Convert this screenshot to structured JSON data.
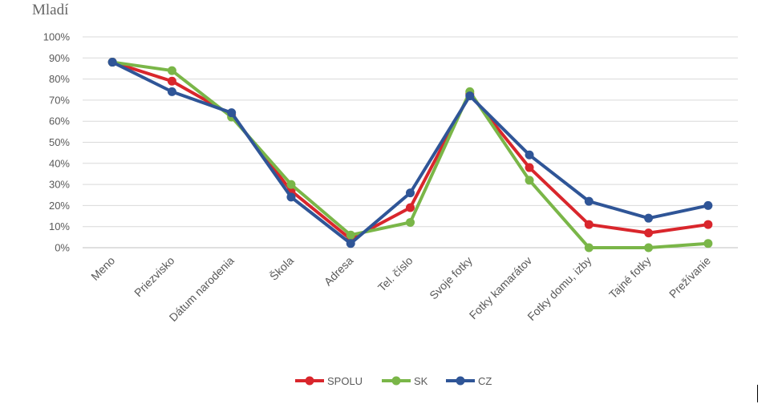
{
  "header": {
    "title": "Mladí"
  },
  "chart_data": {
    "type": "line",
    "title": "Mladí",
    "xlabel": "",
    "ylabel": "",
    "ylim": [
      0,
      100
    ],
    "y_ticks": [
      "0%",
      "10%",
      "20%",
      "30%",
      "40%",
      "50%",
      "60%",
      "70%",
      "80%",
      "90%",
      "100%"
    ],
    "grid": true,
    "legend_position": "bottom",
    "categories": [
      "Meno",
      "Priezvisko",
      "Dátum narodenia",
      "Škola",
      "Adresa",
      "Tel. číslo",
      "Svoje fotky",
      "Fotky kamarátov",
      "Fotky domu, izby",
      "Tajné fotky",
      "Prežívanie"
    ],
    "series": [
      {
        "name": "SPOLU",
        "color": "#d9262c",
        "values": [
          88,
          79,
          63,
          27,
          4,
          19,
          73,
          38,
          11,
          7,
          11
        ]
      },
      {
        "name": "SK",
        "color": "#7ab648",
        "values": [
          88,
          84,
          62,
          30,
          6,
          12,
          74,
          32,
          0,
          0,
          2
        ]
      },
      {
        "name": "CZ",
        "color": "#2f5597",
        "values": [
          88,
          74,
          64,
          24,
          2,
          26,
          72,
          44,
          22,
          14,
          20
        ]
      }
    ]
  }
}
